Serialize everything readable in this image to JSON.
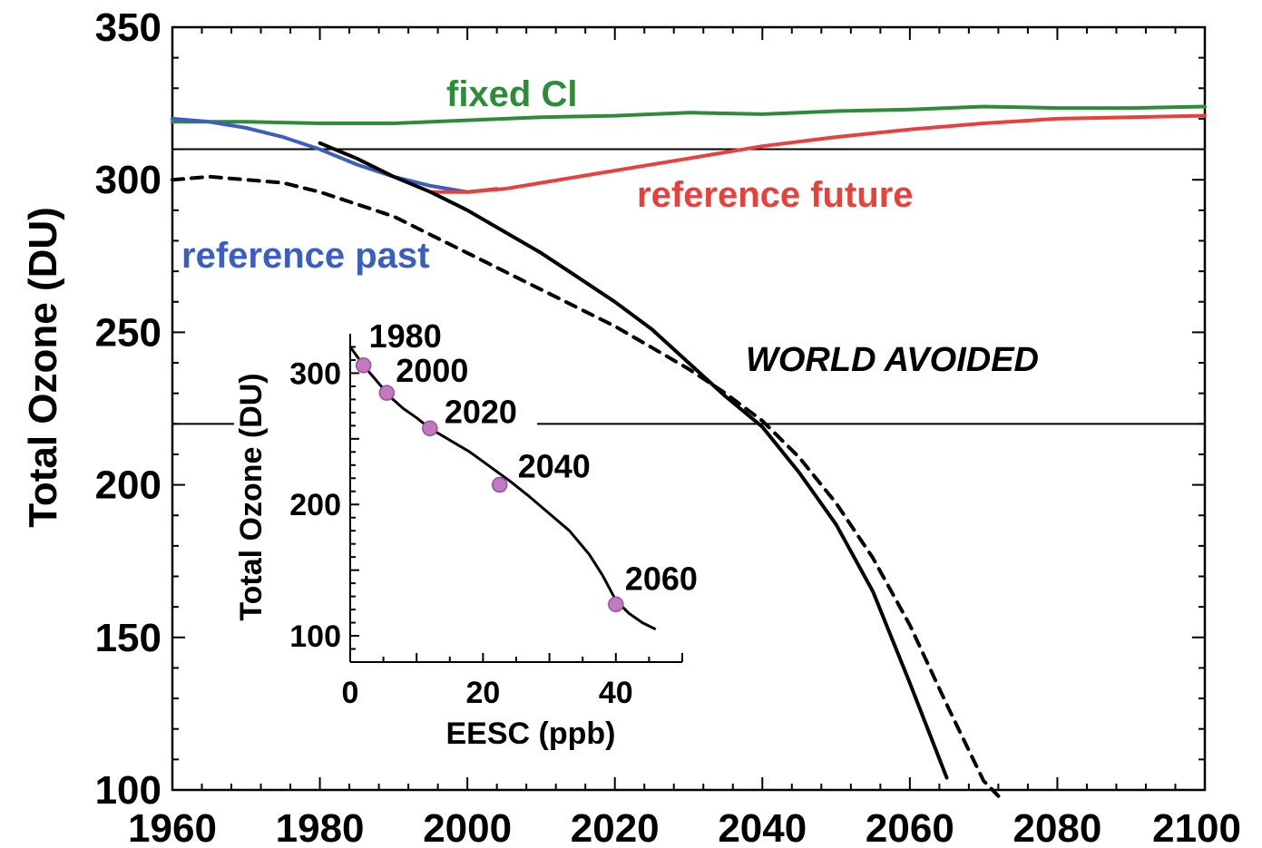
{
  "chart_data": [
    {
      "type": "line",
      "xlabel": "",
      "ylabel": "Total Ozone (DU)",
      "xlim": [
        1960,
        2100
      ],
      "ylim": [
        100,
        350
      ],
      "xticks": [
        1960,
        1980,
        2000,
        2020,
        2040,
        2060,
        2080,
        2100
      ],
      "yticks": [
        100,
        150,
        200,
        250,
        300,
        350
      ],
      "grid": false,
      "reference_lines": [
        310,
        220
      ],
      "annotations": [
        "WORLD AVOIDED"
      ],
      "series": [
        {
          "name": "fixed Cl",
          "color": "#2e8b3a",
          "style": "solid",
          "x": [
            1960,
            1970,
            1980,
            1990,
            2000,
            2010,
            2020,
            2030,
            2040,
            2050,
            2060,
            2070,
            2080,
            2090,
            2100
          ],
          "y": [
            319,
            319,
            318.5,
            318.5,
            319.5,
            320.5,
            321,
            322,
            321.5,
            322.5,
            323,
            324,
            323.5,
            323.5,
            324
          ]
        },
        {
          "name": "reference past",
          "color": "#3a5fbf",
          "style": "solid",
          "x": [
            1960,
            1965,
            1970,
            1975,
            1980,
            1985,
            1990,
            1995,
            2000,
            2004
          ],
          "y": [
            320,
            319,
            317,
            314,
            310,
            305,
            301,
            298,
            296,
            297
          ]
        },
        {
          "name": "reference future",
          "color": "#e8413c",
          "style": "solid",
          "x": [
            1995,
            2000,
            2005,
            2010,
            2020,
            2030,
            2040,
            2050,
            2060,
            2070,
            2080,
            2090,
            2100
          ],
          "y": [
            296,
            296,
            297,
            299,
            303,
            307,
            311,
            314,
            316.5,
            318.5,
            320,
            320.5,
            321
          ]
        },
        {
          "name": "",
          "color": "#000000",
          "style": "solid",
          "x": [
            1980,
            1985,
            1990,
            1995,
            2000,
            2005,
            2010,
            2015,
            2020,
            2025,
            2030,
            2035,
            2040,
            2045,
            2050,
            2055,
            2060,
            2065
          ],
          "y": [
            312,
            307,
            301,
            296,
            290,
            283,
            276,
            268,
            260,
            251,
            240,
            229,
            219,
            204,
            187,
            165,
            135,
            104
          ]
        },
        {
          "name": "",
          "color": "#000000",
          "style": "dashed",
          "x": [
            1960,
            1965,
            1970,
            1975,
            1980,
            1985,
            1990,
            1995,
            2000,
            2005,
            2010,
            2015,
            2020,
            2025,
            2030,
            2035,
            2040,
            2045,
            2050,
            2055,
            2060,
            2065,
            2070,
            2072
          ],
          "y": [
            300,
            301,
            300,
            299,
            296,
            292,
            288,
            282,
            276,
            270,
            264,
            258,
            252,
            245,
            238,
            230,
            221,
            209,
            194,
            176,
            154,
            128,
            103,
            98
          ]
        }
      ]
    },
    {
      "type": "line",
      "xlabel": "EESC (ppb)",
      "ylabel": "Total Ozone (DU)",
      "xlim": [
        0,
        50
      ],
      "ylim": [
        80,
        330
      ],
      "xticks": [
        0,
        20,
        40
      ],
      "yticks": [
        100,
        200,
        300
      ],
      "series": [
        {
          "name": "",
          "color": "#000000",
          "style": "solid",
          "x": [
            0,
            2,
            4,
            6,
            8,
            10,
            12,
            15,
            18,
            21,
            24,
            27,
            30,
            33,
            36,
            38,
            40,
            42,
            44,
            46
          ],
          "y": [
            320,
            306,
            294,
            282,
            273,
            266,
            258,
            249,
            240,
            229,
            218,
            206,
            193,
            180,
            162,
            146,
            127,
            117,
            110,
            105
          ]
        }
      ],
      "markers": {
        "color": "#c07ac0",
        "points": [
          {
            "label": "1980",
            "x": 2,
            "y": 306
          },
          {
            "label": "2000",
            "x": 5.5,
            "y": 285
          },
          {
            "label": "2020",
            "x": 12,
            "y": 258
          },
          {
            "label": "2040",
            "x": 22.5,
            "y": 215
          },
          {
            "label": "2060",
            "x": 40,
            "y": 124
          }
        ]
      }
    }
  ]
}
